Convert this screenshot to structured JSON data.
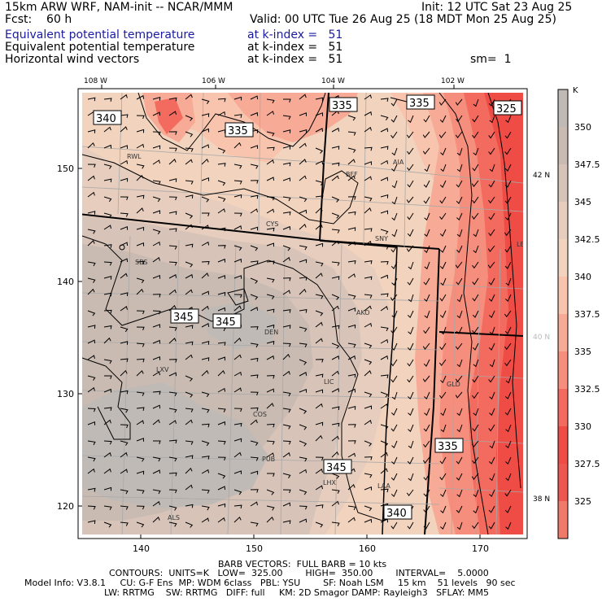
{
  "header": {
    "left1": "15km ARW WRF, NAM-init -- NCAR/MMM",
    "left2": "Fcst:    60 h",
    "right1": "Init: 12 UTC Sat 23 Aug 25",
    "right2": "Valid: 00 UTC Tue 26 Aug 25 (18 MDT Mon 25 Aug 25)",
    "fields": [
      {
        "name": "Equivalent potential temperature",
        "level": "at k-index =   51",
        "extra": ""
      },
      {
        "name": "Equivalent potential temperature",
        "level": "at k-index =   51",
        "extra": ""
      },
      {
        "name": "Horizontal wind vectors",
        "level": "at k-index =   51",
        "extra": "sm=  1"
      }
    ]
  },
  "map": {
    "top_lon_labels": [
      "108 W",
      "106 W",
      "104 W",
      "102 W"
    ],
    "right_lat_labels": [
      "42 N",
      "40 N",
      "38 N"
    ],
    "x_ticks": [
      "140",
      "150",
      "160",
      "170"
    ],
    "y_ticks": [
      "150",
      "140",
      "130",
      "120"
    ],
    "stations": [
      "RWL",
      "BFF",
      "AIA",
      "CYS",
      "SNY",
      "LBF",
      "SBS",
      "AKO",
      "DEN",
      "LXV",
      "LIC",
      "GLD",
      "COS",
      "PUB",
      "LHX",
      "LAA",
      "ALS"
    ],
    "contour_labels": [
      "340",
      "335",
      "335",
      "335",
      "325",
      "345",
      "345",
      "345",
      "335",
      "340"
    ]
  },
  "colorbar": {
    "unit": "K",
    "labels": [
      "350",
      "347.5",
      "345",
      "342.5",
      "340",
      "337.5",
      "335",
      "332.5",
      "330",
      "327.5",
      "325"
    ],
    "colors": [
      "#bfbab6",
      "#c9bbb2",
      "#d7c3b8",
      "#e6cdbd",
      "#f2d3be",
      "#f8c4ad",
      "#f7aa95",
      "#f58e7c",
      "#f36a5e",
      "#ef4c46",
      "#ee5650",
      "#f07a6a"
    ]
  },
  "footer": {
    "line1": "BARB VECTORS:  FULL BARB = 10 kts",
    "line2": "CONTOURS:  UNITS=K   LOW=  325.00        HIGH=  350.00        INTERVAL=    5.0000",
    "line3": "Model Info: V3.8.1     CU: G-F Ens  MP: WDM 6class   PBL: YSU        SF: Noah LSM     15 km    51 levels   90 sec",
    "line4": "LW: RRTMG    SW: RRTMG   DIFF: full     KM: 2D Smagor DAMP: Rayleigh3   SFLAY: MM5"
  }
}
